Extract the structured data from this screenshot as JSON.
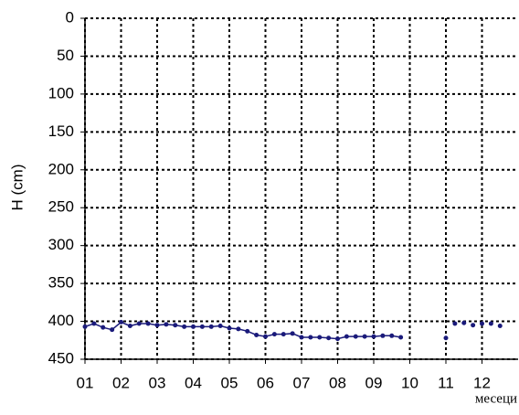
{
  "chart_data": {
    "type": "line",
    "ylabel": "H (cm)",
    "xlabel": "месеци",
    "ylim": [
      450,
      0
    ],
    "yticks": [
      0,
      50,
      100,
      150,
      200,
      250,
      300,
      350,
      400,
      450
    ],
    "xlim": [
      1,
      13
    ],
    "xticks": [
      {
        "value": 1,
        "label": "01"
      },
      {
        "value": 2,
        "label": "02"
      },
      {
        "value": 3,
        "label": "03"
      },
      {
        "value": 4,
        "label": "04"
      },
      {
        "value": 5,
        "label": "05"
      },
      {
        "value": 6,
        "label": "06"
      },
      {
        "value": 7,
        "label": "07"
      },
      {
        "value": 8,
        "label": "08"
      },
      {
        "value": 9,
        "label": "09"
      },
      {
        "value": 10,
        "label": "10"
      },
      {
        "value": 11,
        "label": "11"
      },
      {
        "value": 12,
        "label": "12"
      }
    ],
    "grid": true,
    "grid_style": "dashed",
    "x": [
      1.0,
      1.25,
      1.5,
      1.75,
      2.0,
      2.25,
      2.5,
      2.75,
      3.0,
      3.25,
      3.5,
      3.75,
      4.0,
      4.25,
      4.5,
      4.75,
      5.0,
      5.25,
      5.5,
      5.75,
      6.0,
      6.25,
      6.5,
      6.75,
      7.0,
      7.25,
      7.5,
      7.75,
      8.0,
      8.25,
      8.5,
      8.75,
      9.0,
      9.25,
      9.5,
      9.75,
      10.5,
      11.0,
      11.1,
      11.25,
      11.4,
      11.5,
      11.6,
      11.75,
      11.9,
      12.0,
      12.1,
      12.25,
      12.4,
      12.5
    ],
    "series": [
      {
        "color": "#1a1a7a",
        "values": [
          407,
          403,
          408,
          411,
          401,
          406,
          403,
          403,
          405,
          404,
          405,
          407,
          407,
          407,
          407,
          406,
          409,
          410,
          413,
          418,
          420,
          417,
          417,
          416,
          421,
          421,
          421,
          422,
          423,
          420,
          420,
          420,
          420,
          419,
          419,
          421,
          null,
          422,
          null,
          403,
          null,
          402,
          null,
          405,
          null,
          403,
          null,
          403,
          null,
          406
        ]
      }
    ]
  }
}
